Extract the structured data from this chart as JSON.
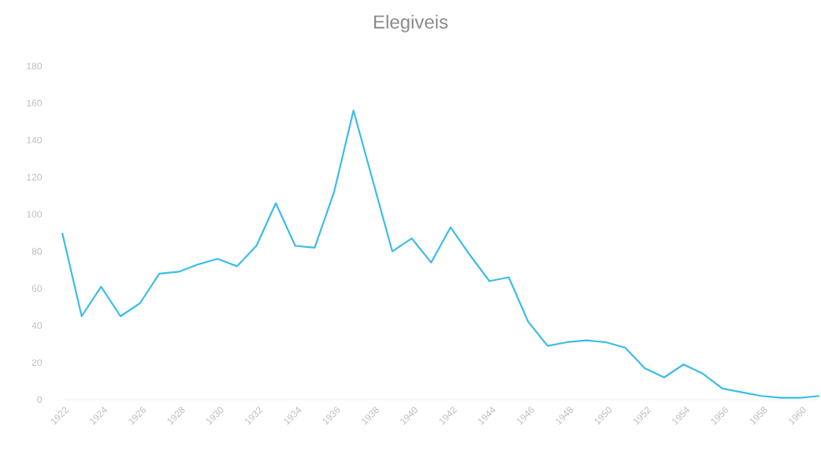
{
  "chart_data": {
    "type": "line",
    "title": "Elegiveis",
    "x": [
      1922,
      1923,
      1924,
      1925,
      1926,
      1927,
      1928,
      1929,
      1930,
      1931,
      1932,
      1933,
      1934,
      1935,
      1936,
      1937,
      1938,
      1939,
      1940,
      1941,
      1942,
      1943,
      1944,
      1945,
      1946,
      1947,
      1948,
      1949,
      1950,
      1951,
      1952,
      1953,
      1954,
      1955,
      1956,
      1957,
      1958,
      1959,
      1960,
      1961
    ],
    "series": [
      {
        "color": "#3bbde8",
        "values": [
          90,
          45,
          61,
          45,
          52,
          68,
          69,
          73,
          76,
          72,
          83,
          106,
          83,
          82,
          112,
          156,
          118,
          80,
          87,
          74,
          93,
          78,
          64,
          66,
          42,
          29,
          31,
          32,
          31,
          28,
          17,
          12,
          19,
          14,
          6,
          4,
          2,
          1,
          1,
          2
        ]
      }
    ],
    "xlim": [
      1922,
      1961
    ],
    "xticks": [
      1922,
      1924,
      1926,
      1928,
      1930,
      1932,
      1934,
      1936,
      1938,
      1940,
      1942,
      1944,
      1946,
      1948,
      1950,
      1952,
      1954,
      1956,
      1958,
      1960
    ],
    "ylim": [
      0,
      180
    ],
    "yticks": [
      0,
      20,
      40,
      60,
      80,
      100,
      120,
      140,
      160,
      180
    ]
  }
}
